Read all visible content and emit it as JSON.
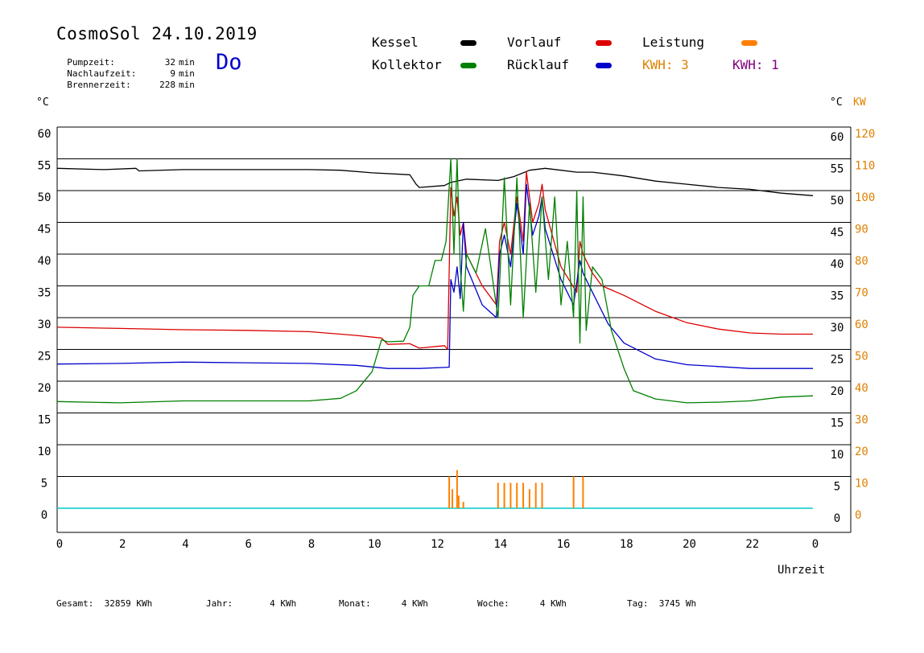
{
  "header": {
    "title": "CosmoSol 24.10.2019",
    "day": "Do",
    "stats": [
      {
        "label": "Pumpzeit:",
        "value": "32",
        "unit": "min"
      },
      {
        "label": "Nachlaufzeit:",
        "value": "9",
        "unit": "min"
      },
      {
        "label": "Brennerzeit:",
        "value": "228",
        "unit": "min"
      }
    ]
  },
  "legend": {
    "kessel": {
      "label": "Kessel",
      "color": "#000000"
    },
    "vorlauf": {
      "label": "Vorlauf",
      "color": "#dd0000"
    },
    "leistung": {
      "label": "Leistung",
      "color": "#ff8000"
    },
    "kollektor": {
      "label": "Kollektor",
      "color": "#008000"
    },
    "ruecklauf": {
      "label": "Rücklauf",
      "color": "#0000cc"
    },
    "kwh1": {
      "label": "KWH: 3",
      "color": "#e08000"
    },
    "kwh2": {
      "label": "KWH: 1",
      "color": "#800080"
    }
  },
  "axes": {
    "left_unit": "°C",
    "right_unit": "°C",
    "right_unit2": "KW",
    "xlabel": "Uhrzeit"
  },
  "footer": [
    {
      "label": "Gesamt:",
      "value": "32859 KWh"
    },
    {
      "label": "Jahr:",
      "value": "4 KWh"
    },
    {
      "label": "Monat:",
      "value": "4 KWh"
    },
    {
      "label": "Woche:",
      "value": "4 KWh"
    },
    {
      "label": "Tag:",
      "value": "3745 Wh"
    }
  ],
  "chart_data": {
    "type": "line",
    "x_range": [
      0,
      24
    ],
    "y_range": [
      0,
      60
    ],
    "y2_range": [
      0,
      120
    ],
    "x_ticks": [
      "0",
      "2",
      "4",
      "6",
      "8",
      "10",
      "12",
      "14",
      "16",
      "18",
      "20",
      "22",
      "0"
    ],
    "y_ticks": [
      "0",
      "5",
      "10",
      "15",
      "20",
      "25",
      "30",
      "35",
      "40",
      "45",
      "50",
      "55",
      "60"
    ],
    "y2_ticks": [
      "0",
      "10",
      "20",
      "30",
      "40",
      "50",
      "60",
      "70",
      "80",
      "90",
      "100",
      "110",
      "120"
    ],
    "grid": true,
    "series": [
      {
        "name": "Kessel",
        "color": "#000000",
        "x": [
          0,
          1.5,
          2.5,
          2.6,
          4,
          6,
          8,
          9,
          10,
          11.2,
          11.4,
          11.5,
          12.3,
          12.5,
          13,
          14,
          14.5,
          15,
          15.5,
          16,
          16.5,
          17,
          18,
          19,
          20,
          21,
          22,
          23,
          24
        ],
        "y": [
          53.5,
          53.3,
          53.5,
          53.1,
          53.3,
          53.3,
          53.3,
          53.2,
          52.8,
          52.5,
          51.0,
          50.5,
          50.8,
          51.3,
          51.8,
          51.6,
          52.2,
          53.2,
          53.5,
          53.2,
          52.9,
          52.9,
          52.3,
          51.5,
          51.0,
          50.5,
          50.2,
          49.6,
          49.2
        ]
      },
      {
        "name": "Vorlauf",
        "color": "#dd0000",
        "x": [
          0,
          2,
          4,
          6,
          8,
          9.5,
          10.3,
          10.5,
          11.2,
          11.5,
          12.3,
          12.4,
          12.5,
          12.6,
          12.7,
          12.8,
          12.9,
          13.0,
          13.5,
          13.95,
          14.05,
          14.2,
          14.4,
          14.6,
          14.8,
          14.9,
          15.1,
          15.3,
          15.4,
          15.5,
          16.0,
          16.5,
          16.6,
          16.7,
          17.0,
          17.3,
          18,
          19,
          20,
          21,
          22,
          23,
          24
        ],
        "y": [
          28.5,
          28.3,
          28.1,
          28.0,
          27.8,
          27.2,
          26.8,
          25.8,
          25.9,
          25.2,
          25.6,
          25.0,
          50.5,
          46,
          49,
          43,
          45,
          40,
          35,
          32,
          42,
          45,
          40,
          49,
          42,
          53,
          45,
          48,
          51,
          47,
          38,
          34,
          42,
          40,
          37,
          35,
          33.5,
          31,
          29.2,
          28.2,
          27.6,
          27.4,
          27.4
        ]
      },
      {
        "name": "Rücklauf",
        "color": "#0000cc",
        "x": [
          0,
          2,
          4,
          6,
          8,
          9.5,
          10.5,
          11.5,
          12.45,
          12.5,
          12.6,
          12.7,
          12.8,
          12.9,
          13.0,
          13.5,
          13.95,
          14.05,
          14.2,
          14.4,
          14.6,
          14.8,
          14.9,
          15.1,
          15.3,
          15.4,
          15.5,
          16.0,
          16.4,
          16.6,
          16.7,
          17.0,
          17.5,
          18,
          19,
          20,
          21,
          22,
          23,
          24
        ],
        "y": [
          22.7,
          22.8,
          23.0,
          22.9,
          22.8,
          22.5,
          22.0,
          22.0,
          22.2,
          36,
          34,
          38,
          33,
          45,
          38,
          32,
          30,
          40,
          43,
          38,
          48,
          40,
          51,
          43,
          46,
          49,
          44,
          36,
          32,
          39,
          37,
          34,
          29,
          26,
          23.5,
          22.6,
          22.3,
          22.0,
          22.0,
          22.0
        ]
      },
      {
        "name": "Kollektor",
        "color": "#008000",
        "x": [
          0,
          2,
          4,
          6,
          8,
          9,
          9.5,
          10,
          10.3,
          10.5,
          11.0,
          11.2,
          11.3,
          11.5,
          11.8,
          12.0,
          12.2,
          12.35,
          12.5,
          12.6,
          12.7,
          12.8,
          12.9,
          13.0,
          13.3,
          13.6,
          14.0,
          14.2,
          14.4,
          14.6,
          14.8,
          15.0,
          15.2,
          15.4,
          15.6,
          15.8,
          16.0,
          16.2,
          16.4,
          16.5,
          16.6,
          16.7,
          16.8,
          17.0,
          17.3,
          17.6,
          18.0,
          18.3,
          19,
          20,
          21,
          22,
          23,
          24
        ],
        "y": [
          16.8,
          16.6,
          16.9,
          16.9,
          16.9,
          17.3,
          18.5,
          21.5,
          26.5,
          26.2,
          26.3,
          28.5,
          33.5,
          35.0,
          35.0,
          39.0,
          39.0,
          42.0,
          55.0,
          40.0,
          55.0,
          38.0,
          31.0,
          40.0,
          37.0,
          44.0,
          30.0,
          52.0,
          32.0,
          52.0,
          30.0,
          48.0,
          34.0,
          49.0,
          36.0,
          49.0,
          32.0,
          42.0,
          30.0,
          50.0,
          26.0,
          49.0,
          28.0,
          38.0,
          36.0,
          28.0,
          22.0,
          18.5,
          17.2,
          16.6,
          16.7,
          16.9,
          17.5,
          17.7
        ]
      },
      {
        "name": "Leistung",
        "color": "#ff8000",
        "type": "bar",
        "x": [
          12.45,
          12.55,
          12.7,
          12.75,
          12.9,
          14.0,
          14.2,
          14.4,
          14.6,
          14.8,
          15.0,
          15.2,
          15.4,
          16.4,
          16.7
        ],
        "y": [
          5,
          3,
          6,
          2,
          1,
          4,
          4,
          4,
          4,
          4,
          3,
          4,
          4,
          5,
          5
        ]
      }
    ]
  }
}
